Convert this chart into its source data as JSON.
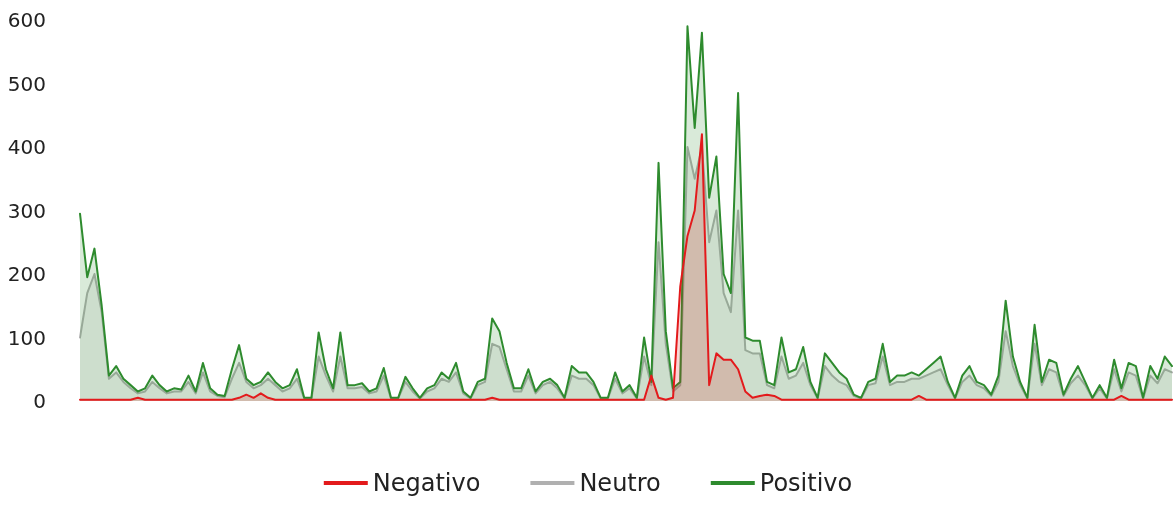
{
  "chart_data": {
    "type": "area",
    "categories": [
      null,
      null,
      null,
      null,
      null,
      null,
      null,
      null,
      null,
      null,
      null,
      null,
      null,
      null,
      null,
      null,
      null,
      null,
      null,
      null,
      null,
      null,
      null,
      null,
      null,
      null,
      null,
      null,
      null,
      null,
      null,
      null,
      null,
      null,
      null,
      null,
      null,
      null,
      null,
      null,
      null,
      null,
      null,
      null,
      null,
      null,
      null,
      null,
      null,
      null,
      null,
      null,
      null,
      null,
      null,
      null,
      null,
      null,
      null,
      null,
      null,
      null,
      null,
      null,
      null,
      null,
      null,
      null,
      null,
      null,
      null,
      null,
      null,
      null,
      null,
      null,
      null,
      null,
      null,
      null,
      null,
      null,
      null,
      null,
      null,
      null,
      null,
      null,
      null,
      null,
      null,
      null,
      null,
      null,
      null,
      null,
      null,
      null,
      null,
      null,
      null,
      null,
      null,
      null,
      null,
      null,
      null,
      null,
      null,
      null,
      null,
      null,
      null,
      null,
      null,
      null,
      null,
      null,
      null,
      null,
      null,
      null,
      null,
      null,
      null,
      null,
      null,
      null,
      null,
      null,
      null,
      null,
      null,
      null,
      null,
      null,
      null,
      null,
      null,
      null,
      null,
      null,
      null,
      null,
      null,
      null,
      null,
      null,
      null,
      null,
      null,
      null
    ],
    "ylim": [
      0,
      600
    ],
    "yticks": [
      0,
      100,
      200,
      300,
      400,
      500,
      600
    ],
    "grid": false,
    "legend": "bottom",
    "marker": "none",
    "line_style": "solid",
    "series": [
      {
        "name": "Negativo",
        "color": "#e31a1c",
        "values": [
          2,
          2,
          2,
          2,
          2,
          2,
          2,
          2,
          5,
          2,
          2,
          2,
          2,
          2,
          2,
          2,
          2,
          2,
          2,
          2,
          2,
          2,
          5,
          10,
          5,
          12,
          5,
          2,
          2,
          2,
          2,
          2,
          2,
          2,
          2,
          2,
          2,
          2,
          2,
          2,
          2,
          2,
          2,
          2,
          2,
          2,
          2,
          2,
          2,
          2,
          2,
          2,
          2,
          2,
          2,
          2,
          2,
          5,
          2,
          2,
          2,
          2,
          2,
          2,
          2,
          2,
          2,
          2,
          2,
          2,
          2,
          2,
          2,
          2,
          2,
          2,
          2,
          2,
          2,
          40,
          5,
          2,
          5,
          180,
          260,
          300,
          420,
          25,
          75,
          65,
          65,
          50,
          15,
          5,
          8,
          10,
          8,
          2,
          2,
          2,
          2,
          2,
          2,
          2,
          2,
          2,
          2,
          2,
          2,
          2,
          2,
          2,
          2,
          2,
          2,
          2,
          8,
          2,
          2,
          2,
          2,
          2,
          2,
          2,
          2,
          2,
          2,
          2,
          2,
          2,
          2,
          2,
          2,
          2,
          2,
          2,
          2,
          2,
          2,
          2,
          2,
          2,
          2,
          2,
          8,
          2,
          2,
          2,
          2,
          2,
          2,
          2
        ]
      },
      {
        "name": "Neutro",
        "color": "#b0b0b0",
        "values": [
          100,
          170,
          200,
          140,
          35,
          45,
          30,
          20,
          12,
          15,
          30,
          20,
          12,
          15,
          15,
          30,
          12,
          45,
          15,
          8,
          6,
          35,
          60,
          30,
          20,
          25,
          35,
          25,
          15,
          20,
          35,
          4,
          4,
          70,
          40,
          15,
          70,
          20,
          20,
          22,
          12,
          15,
          40,
          4,
          4,
          30,
          15,
          4,
          15,
          20,
          35,
          30,
          45,
          12,
          4,
          25,
          30,
          90,
          85,
          50,
          15,
          15,
          40,
          12,
          25,
          30,
          20,
          4,
          40,
          35,
          35,
          25,
          4,
          4,
          35,
          12,
          20,
          4,
          70,
          25,
          250,
          90,
          15,
          25,
          400,
          350,
          400,
          250,
          300,
          170,
          140,
          300,
          80,
          75,
          75,
          25,
          20,
          70,
          35,
          40,
          60,
          25,
          4,
          55,
          40,
          30,
          25,
          8,
          4,
          25,
          28,
          70,
          25,
          30,
          30,
          35,
          35,
          40,
          45,
          50,
          25,
          4,
          30,
          40,
          25,
          20,
          8,
          30,
          110,
          55,
          25,
          4,
          90,
          25,
          50,
          45,
          8,
          28,
          40,
          25,
          4,
          20,
          4,
          50,
          15,
          45,
          40,
          4,
          40,
          28,
          50,
          45
        ]
      },
      {
        "name": "Positivo",
        "color": "#2e8b2e",
        "values": [
          295,
          195,
          240,
          150,
          40,
          55,
          35,
          25,
          15,
          20,
          40,
          25,
          15,
          20,
          18,
          40,
          15,
          60,
          20,
          10,
          8,
          50,
          88,
          35,
          25,
          30,
          45,
          30,
          20,
          25,
          50,
          5,
          5,
          108,
          50,
          20,
          108,
          25,
          25,
          28,
          15,
          20,
          52,
          5,
          5,
          38,
          20,
          5,
          20,
          25,
          45,
          35,
          60,
          15,
          5,
          30,
          35,
          130,
          110,
          60,
          20,
          20,
          50,
          15,
          30,
          35,
          25,
          5,
          55,
          45,
          45,
          30,
          5,
          5,
          45,
          15,
          25,
          5,
          100,
          30,
          375,
          110,
          20,
          30,
          590,
          430,
          580,
          320,
          385,
          200,
          170,
          485,
          100,
          95,
          95,
          30,
          25,
          100,
          45,
          50,
          85,
          30,
          5,
          75,
          60,
          45,
          35,
          10,
          5,
          30,
          35,
          90,
          30,
          40,
          40,
          45,
          40,
          50,
          60,
          70,
          30,
          5,
          40,
          55,
          30,
          25,
          10,
          40,
          158,
          70,
          30,
          5,
          120,
          30,
          65,
          60,
          10,
          35,
          55,
          30,
          5,
          25,
          5,
          65,
          20,
          60,
          55,
          5,
          55,
          35,
          70,
          55
        ]
      }
    ]
  }
}
